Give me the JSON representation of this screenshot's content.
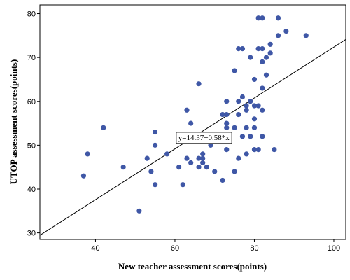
{
  "chart_data": {
    "type": "scatter",
    "title": "",
    "xlabel": "New teacher assessment scores(points)",
    "ylabel": "UTOP assessment scores(points)",
    "xlim": [
      26,
      103
    ],
    "ylim": [
      28.5,
      82
    ],
    "xticks": [
      40,
      60,
      80,
      100
    ],
    "yticks": [
      30,
      40,
      50,
      60,
      70,
      80
    ],
    "grid": false,
    "legend": "none",
    "colors": {
      "points": "#3f57a6",
      "fit_line": "#000000",
      "background": "#ffffff"
    },
    "fit_line": {
      "intercept": 14.37,
      "slope": 0.58,
      "label": "y=14.37+0.58*x"
    },
    "points": [
      {
        "x": 37,
        "y": 43
      },
      {
        "x": 38,
        "y": 48
      },
      {
        "x": 42,
        "y": 54
      },
      {
        "x": 47,
        "y": 45
      },
      {
        "x": 51,
        "y": 35
      },
      {
        "x": 53,
        "y": 47
      },
      {
        "x": 54,
        "y": 44
      },
      {
        "x": 55,
        "y": 53
      },
      {
        "x": 55,
        "y": 50
      },
      {
        "x": 55,
        "y": 41
      },
      {
        "x": 58,
        "y": 48
      },
      {
        "x": 61,
        "y": 45
      },
      {
        "x": 62,
        "y": 41
      },
      {
        "x": 63,
        "y": 58
      },
      {
        "x": 63,
        "y": 47
      },
      {
        "x": 64,
        "y": 55
      },
      {
        "x": 64,
        "y": 46
      },
      {
        "x": 66,
        "y": 64
      },
      {
        "x": 66,
        "y": 47
      },
      {
        "x": 66,
        "y": 45
      },
      {
        "x": 67,
        "y": 48
      },
      {
        "x": 67,
        "y": 47
      },
      {
        "x": 67,
        "y": 46
      },
      {
        "x": 68,
        "y": 45
      },
      {
        "x": 69,
        "y": 50
      },
      {
        "x": 70,
        "y": 44
      },
      {
        "x": 71,
        "y": 52
      },
      {
        "x": 72,
        "y": 57
      },
      {
        "x": 72,
        "y": 42
      },
      {
        "x": 73,
        "y": 60
      },
      {
        "x": 73,
        "y": 57
      },
      {
        "x": 73,
        "y": 55
      },
      {
        "x": 73,
        "y": 54
      },
      {
        "x": 73,
        "y": 51
      },
      {
        "x": 73,
        "y": 49
      },
      {
        "x": 75,
        "y": 67
      },
      {
        "x": 75,
        "y": 54
      },
      {
        "x": 75,
        "y": 44
      },
      {
        "x": 76,
        "y": 72
      },
      {
        "x": 76,
        "y": 60
      },
      {
        "x": 76,
        "y": 57
      },
      {
        "x": 76,
        "y": 47
      },
      {
        "x": 77,
        "y": 72
      },
      {
        "x": 77,
        "y": 61
      },
      {
        "x": 77,
        "y": 52
      },
      {
        "x": 78,
        "y": 59
      },
      {
        "x": 78,
        "y": 58
      },
      {
        "x": 78,
        "y": 54
      },
      {
        "x": 78,
        "y": 48
      },
      {
        "x": 79,
        "y": 70
      },
      {
        "x": 79,
        "y": 60
      },
      {
        "x": 79,
        "y": 52
      },
      {
        "x": 80,
        "y": 65
      },
      {
        "x": 80,
        "y": 59
      },
      {
        "x": 80,
        "y": 56
      },
      {
        "x": 80,
        "y": 54
      },
      {
        "x": 80,
        "y": 49
      },
      {
        "x": 81,
        "y": 79
      },
      {
        "x": 81,
        "y": 72
      },
      {
        "x": 81,
        "y": 59
      },
      {
        "x": 81,
        "y": 49
      },
      {
        "x": 82,
        "y": 79
      },
      {
        "x": 82,
        "y": 72
      },
      {
        "x": 82,
        "y": 69
      },
      {
        "x": 82,
        "y": 63
      },
      {
        "x": 82,
        "y": 58
      },
      {
        "x": 82,
        "y": 52
      },
      {
        "x": 83,
        "y": 70
      },
      {
        "x": 83,
        "y": 66
      },
      {
        "x": 84,
        "y": 73
      },
      {
        "x": 84,
        "y": 71
      },
      {
        "x": 85,
        "y": 49
      },
      {
        "x": 86,
        "y": 79
      },
      {
        "x": 86,
        "y": 75
      },
      {
        "x": 88,
        "y": 76
      },
      {
        "x": 93,
        "y": 75
      }
    ]
  }
}
